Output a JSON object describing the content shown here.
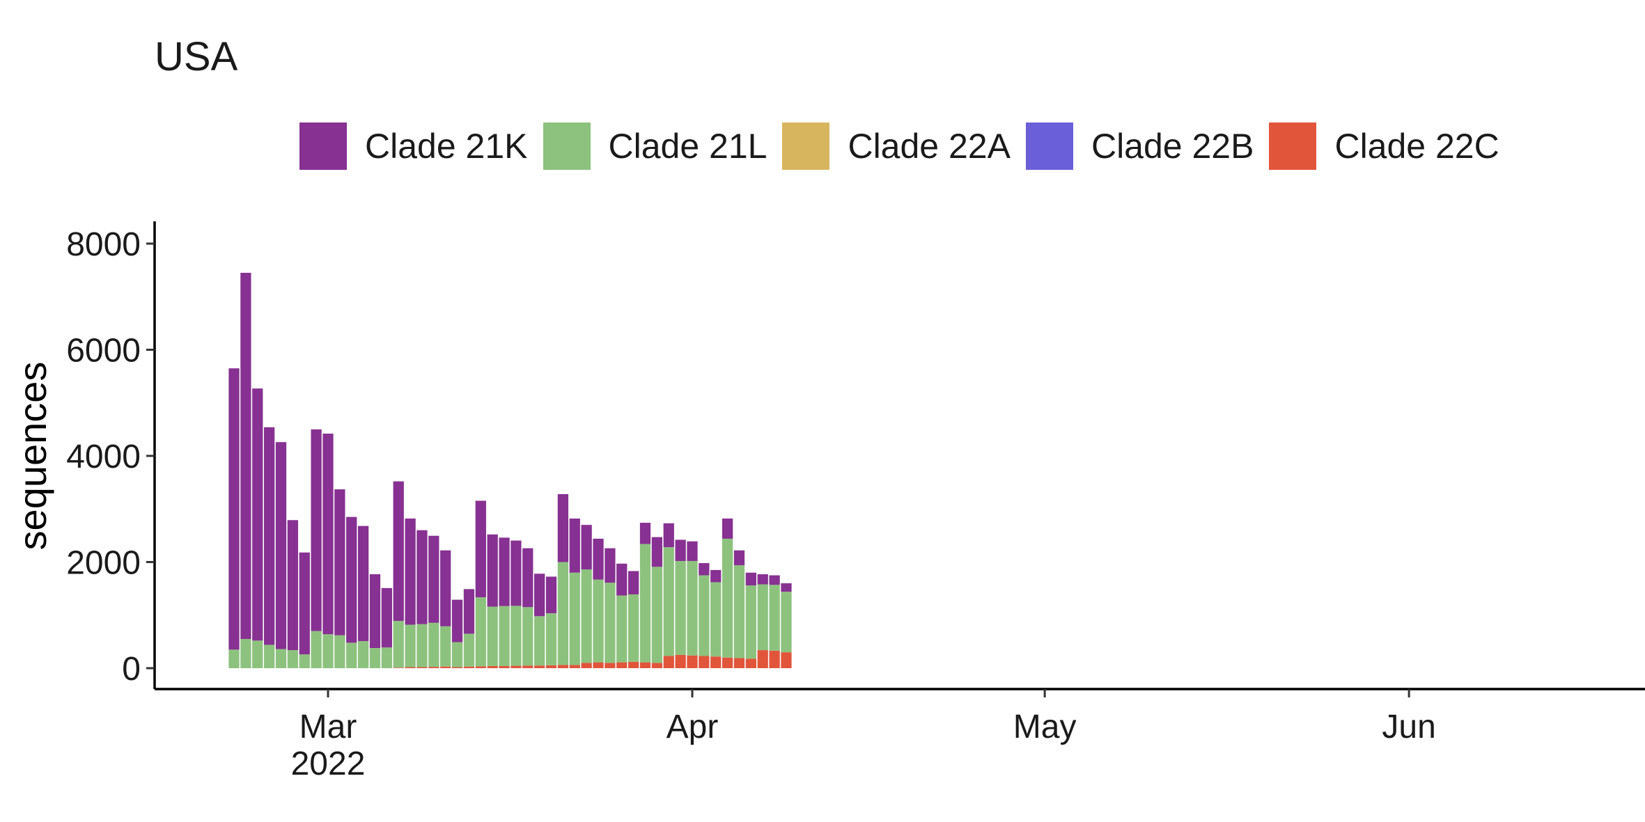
{
  "chart_data": {
    "type": "bar",
    "stacked": true,
    "title": "USA",
    "xlabel": "",
    "ylabel": "sequences",
    "ylim": [
      0,
      8400
    ],
    "yticks": [
      0,
      2000,
      4000,
      6000,
      8000
    ],
    "y_tick_labels": [
      "0",
      "2000",
      "4000",
      "6000",
      "8000"
    ],
    "x_axis": {
      "range": [
        "2022-02-15",
        "2022-06-21"
      ],
      "ticks": [
        {
          "date": "2022-03-01",
          "label": "Mar",
          "sublabel": "2022"
        },
        {
          "date": "2022-04-01",
          "label": "Apr",
          "sublabel": ""
        },
        {
          "date": "2022-05-01",
          "label": "May",
          "sublabel": ""
        },
        {
          "date": "2022-06-01",
          "label": "Jun",
          "sublabel": ""
        }
      ]
    },
    "legend": {
      "position": "top"
    },
    "grid": false,
    "x": [
      "2022-02-21",
      "2022-02-22",
      "2022-02-23",
      "2022-02-24",
      "2022-02-25",
      "2022-02-26",
      "2022-02-27",
      "2022-02-28",
      "2022-03-01",
      "2022-03-02",
      "2022-03-03",
      "2022-03-04",
      "2022-03-05",
      "2022-03-06",
      "2022-03-07",
      "2022-03-08",
      "2022-03-09",
      "2022-03-10",
      "2022-03-11",
      "2022-03-12",
      "2022-03-13",
      "2022-03-14",
      "2022-03-15",
      "2022-03-16",
      "2022-03-17",
      "2022-03-18",
      "2022-03-19",
      "2022-03-20",
      "2022-03-21",
      "2022-03-22",
      "2022-03-23",
      "2022-03-24",
      "2022-03-25",
      "2022-03-26",
      "2022-03-27",
      "2022-03-28",
      "2022-03-29",
      "2022-03-30",
      "2022-03-31",
      "2022-04-01",
      "2022-04-02",
      "2022-04-03",
      "2022-04-04",
      "2022-04-05",
      "2022-04-06",
      "2022-04-07",
      "2022-04-08",
      "2022-04-09"
    ],
    "series": [
      {
        "name": "Clade 22C",
        "color": "#E1553B",
        "values": [
          0,
          0,
          0,
          0,
          0,
          0,
          0,
          0,
          0,
          0,
          0,
          0,
          0,
          0,
          10,
          20,
          20,
          25,
          30,
          20,
          30,
          35,
          40,
          40,
          45,
          50,
          50,
          55,
          60,
          60,
          100,
          110,
          100,
          110,
          120,
          110,
          100,
          230,
          250,
          240,
          230,
          220,
          200,
          190,
          180,
          340,
          330,
          300
        ]
      },
      {
        "name": "Clade 21L",
        "color": "#8DC27E",
        "values": [
          350,
          550,
          520,
          440,
          360,
          340,
          260,
          700,
          640,
          620,
          480,
          510,
          380,
          390,
          880,
          800,
          810,
          830,
          760,
          470,
          620,
          1300,
          1120,
          1130,
          1130,
          1100,
          930,
          980,
          1940,
          1740,
          1760,
          1560,
          1510,
          1260,
          1270,
          2230,
          1810,
          2050,
          1770,
          1780,
          1520,
          1400,
          2240,
          1750,
          1380,
          1240,
          1240,
          1140
        ]
      },
      {
        "name": "Clade 22A",
        "color": "#D7B55E",
        "values": [
          0,
          0,
          0,
          0,
          0,
          0,
          0,
          0,
          0,
          0,
          0,
          0,
          0,
          0,
          0,
          0,
          0,
          0,
          0,
          0,
          0,
          0,
          0,
          0,
          0,
          0,
          0,
          0,
          0,
          0,
          0,
          0,
          0,
          0,
          0,
          0,
          0,
          0,
          0,
          0,
          0,
          0,
          0,
          0,
          0,
          0,
          0,
          0
        ]
      },
      {
        "name": "Clade 22B",
        "color": "#6A5ED9",
        "values": [
          0,
          0,
          0,
          0,
          0,
          0,
          0,
          0,
          0,
          0,
          0,
          0,
          0,
          0,
          0,
          0,
          0,
          0,
          0,
          0,
          0,
          0,
          0,
          0,
          0,
          0,
          0,
          0,
          0,
          0,
          0,
          0,
          0,
          0,
          0,
          0,
          0,
          0,
          0,
          0,
          0,
          0,
          0,
          0,
          0,
          0,
          0,
          0
        ]
      },
      {
        "name": "Clade 21K",
        "color": "#873192",
        "values": [
          5300,
          6900,
          4750,
          4100,
          3900,
          2450,
          1920,
          3800,
          3780,
          2750,
          2370,
          2170,
          1390,
          1120,
          2630,
          2000,
          1770,
          1640,
          1430,
          800,
          840,
          1820,
          1360,
          1290,
          1230,
          1110,
          800,
          690,
          1280,
          1020,
          840,
          770,
          650,
          600,
          440,
          400,
          560,
          450,
          400,
          370,
          230,
          230,
          380,
          280,
          240,
          190,
          180,
          160
        ]
      }
    ]
  },
  "legend_items": [
    {
      "label": "Clade 21K",
      "color": "#873192"
    },
    {
      "label": "Clade 21L",
      "color": "#8DC27E"
    },
    {
      "label": "Clade 22A",
      "color": "#D7B55E"
    },
    {
      "label": "Clade 22B",
      "color": "#6A5ED9"
    },
    {
      "label": "Clade 22C",
      "color": "#E1553B"
    }
  ]
}
